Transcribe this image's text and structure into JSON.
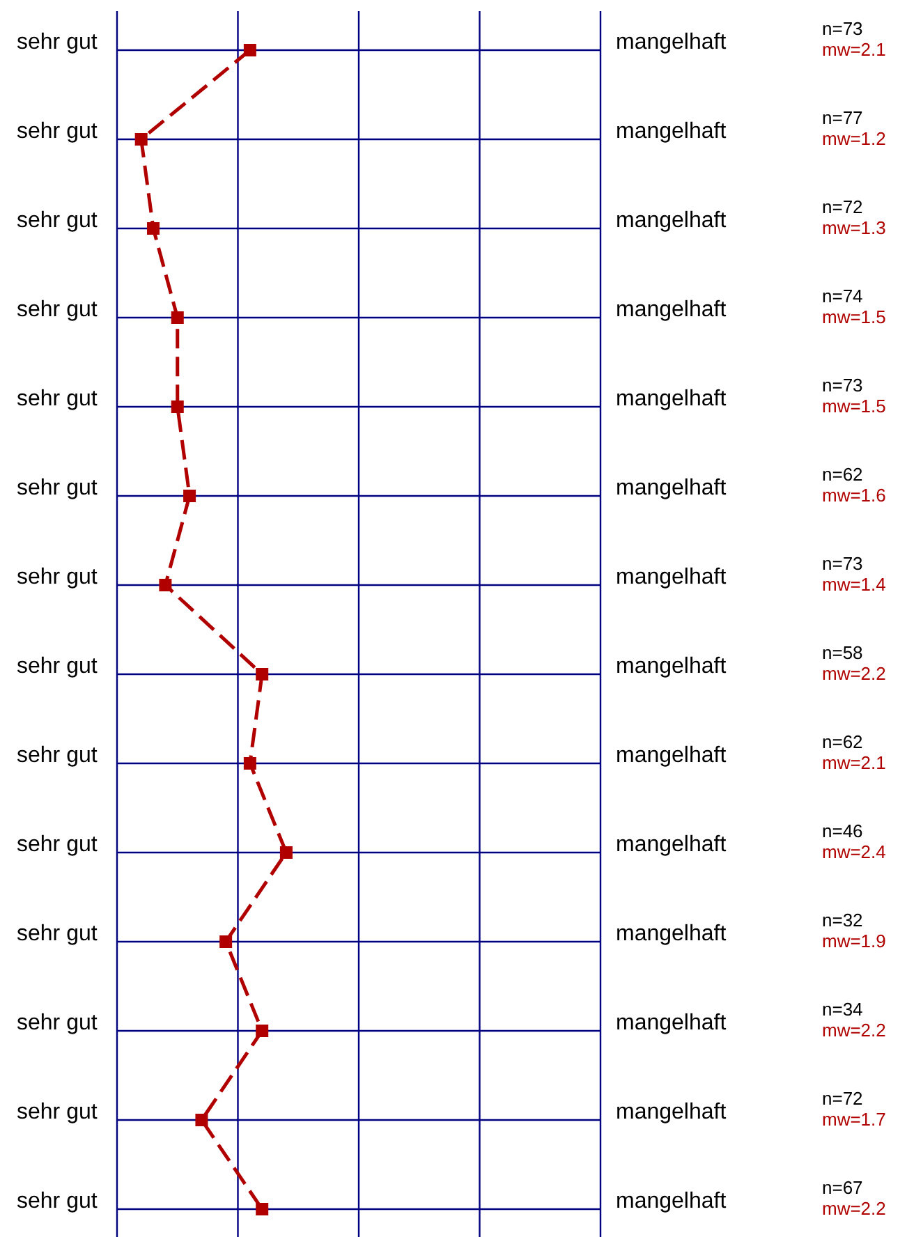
{
  "chart_data": {
    "type": "line",
    "orientation": "horizontal",
    "categories": [
      "sehr gut",
      "sehr gut",
      "sehr gut",
      "sehr gut",
      "sehr gut",
      "sehr gut",
      "sehr gut",
      "sehr gut",
      "sehr gut",
      "sehr gut",
      "sehr gut",
      "sehr gut",
      "sehr gut",
      "sehr gut"
    ],
    "y2_categories": [
      "mangelhaft",
      "mangelhaft",
      "mangelhaft",
      "mangelhaft",
      "mangelhaft",
      "mangelhaft",
      "mangelhaft",
      "mangelhaft",
      "mangelhaft",
      "mangelhaft",
      "mangelhaft",
      "mangelhaft",
      "mangelhaft",
      "mangelhaft"
    ],
    "series": [
      {
        "color": "#b00000",
        "values": [
          2.1,
          1.2,
          1.3,
          1.5,
          1.5,
          1.6,
          1.4,
          2.2,
          2.1,
          2.4,
          1.9,
          2.2,
          1.7,
          2.2
        ],
        "value_labels": [
          "mw=2.1",
          "mw=1.2",
          "mw=1.3",
          "mw=1.5",
          "mw=1.5",
          "mw=1.6",
          "mw=1.4",
          "mw=2.2",
          "mw=2.1",
          "mw=2.4",
          "mw=1.9",
          "mw=2.2",
          "mw=1.7",
          "mw=2.2"
        ]
      }
    ],
    "annotations": [
      "n=73",
      "n=77",
      "n=72",
      "n=74",
      "n=73",
      "n=62",
      "n=73",
      "n=58",
      "n=62",
      "n=46",
      "n=32",
      "n=34",
      "n=72",
      "n=67"
    ],
    "xlim": [
      1,
      5
    ],
    "xticks": [
      {
        "value": 1,
        "label": null
      },
      {
        "value": 2,
        "label": null
      },
      {
        "value": 3,
        "label": null
      },
      {
        "value": 4,
        "label": null
      },
      {
        "value": 5,
        "label": null
      }
    ],
    "tick_labels": "y",
    "grid": true,
    "marker": "square",
    "line_style": "dashed"
  }
}
